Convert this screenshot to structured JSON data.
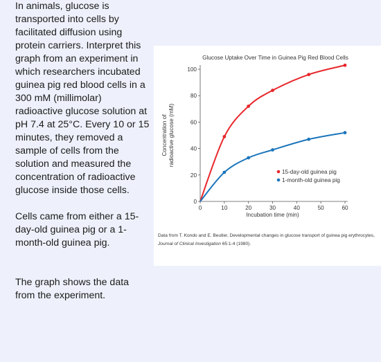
{
  "question": {
    "intro": "In animals, glucose is transported into cells by facilitated diffusion using protein carriers. Interpret this graph from an experiment in which researchers incubated guinea pig red blood cells in a 300 mM (millimolar) radioactive glucose solution at pH 7.4 at 25°C. Every 10 or 15 minutes, they removed a sample of cells from the solution and measured the concentration of radioactive glucose inside those cells.",
    "sources": "Cells came from either a 15-day-old guinea pig or a 1-month-old guinea pig.",
    "graph_note": "The graph shows the data from the experiment."
  },
  "credit": {
    "prefix": "Data from T. Kondo and E. Beutler, Developmental changes in glucose transport of guinea pig erythrocytes, ",
    "journal": "Journal of Clinical Investigation",
    "suffix": " 65:1-4 (1980)."
  },
  "chart_data": {
    "type": "line",
    "title": "Glucose Uptake Over Time in Guinea Pig Red Blood Cells",
    "xlabel": "Incubation time (min)",
    "ylabel_lines": [
      "Concentration of",
      "radioactive glucose (mM)"
    ],
    "xlim": [
      0,
      60
    ],
    "ylim": [
      0,
      100
    ],
    "xticks": [
      0,
      10,
      20,
      30,
      40,
      50,
      60
    ],
    "yticks": [
      0,
      20,
      40,
      60,
      80,
      100
    ],
    "grid": false,
    "legend_position": "bottom-right",
    "series": [
      {
        "name": "15-day-old guinea pig",
        "color": "#e8262b",
        "x": [
          0,
          10,
          20,
          30,
          45,
          60
        ],
        "y": [
          0,
          49,
          72,
          84,
          96,
          103
        ]
      },
      {
        "name": "1-month-old guinea pig",
        "color": "#1b75bb",
        "x": [
          0,
          10,
          20,
          30,
          45,
          60
        ],
        "y": [
          0,
          22,
          33,
          39,
          47,
          52
        ]
      }
    ]
  }
}
